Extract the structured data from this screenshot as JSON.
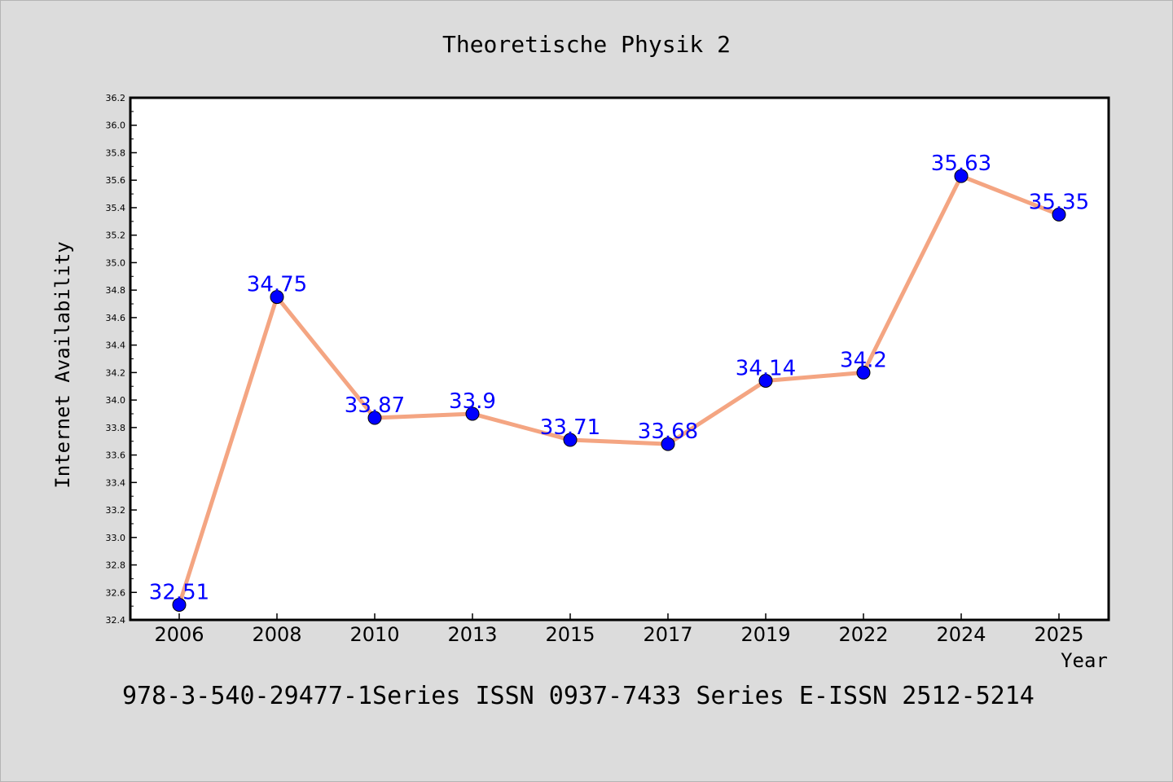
{
  "chart_data": {
    "type": "line",
    "title": "Theoretische Physik 2",
    "xlabel": "Year",
    "ylabel": "Internet Availability",
    "categories": [
      "2006",
      "2008",
      "2010",
      "2013",
      "2015",
      "2017",
      "2019",
      "2022",
      "2024",
      "2025"
    ],
    "values": [
      32.51,
      34.75,
      33.87,
      33.9,
      33.71,
      33.68,
      34.14,
      34.2,
      35.63,
      35.35
    ],
    "data_labels": [
      "32.51",
      "34.75",
      "33.87",
      "33.9",
      "33.71",
      "33.68",
      "34.14",
      "34.2",
      "35.63",
      "35.35"
    ],
    "ylim": [
      32.4,
      36.2
    ],
    "yticks": [
      "32.4",
      "32.6",
      "32.8",
      "33.0",
      "33.2",
      "33.4",
      "33.6",
      "33.8",
      "34.0",
      "34.2",
      "34.4",
      "34.6",
      "34.8",
      "35.0",
      "35.2",
      "35.4",
      "35.6",
      "35.8",
      "36.0",
      "36.2"
    ],
    "grid": false,
    "line_color": "#f4a582",
    "marker_color": "#0000ff",
    "label_color": "#0000ff",
    "footnote": "978-3-540-29477-1Series ISSN 0937-7433 Series E-ISSN 2512-5214"
  }
}
